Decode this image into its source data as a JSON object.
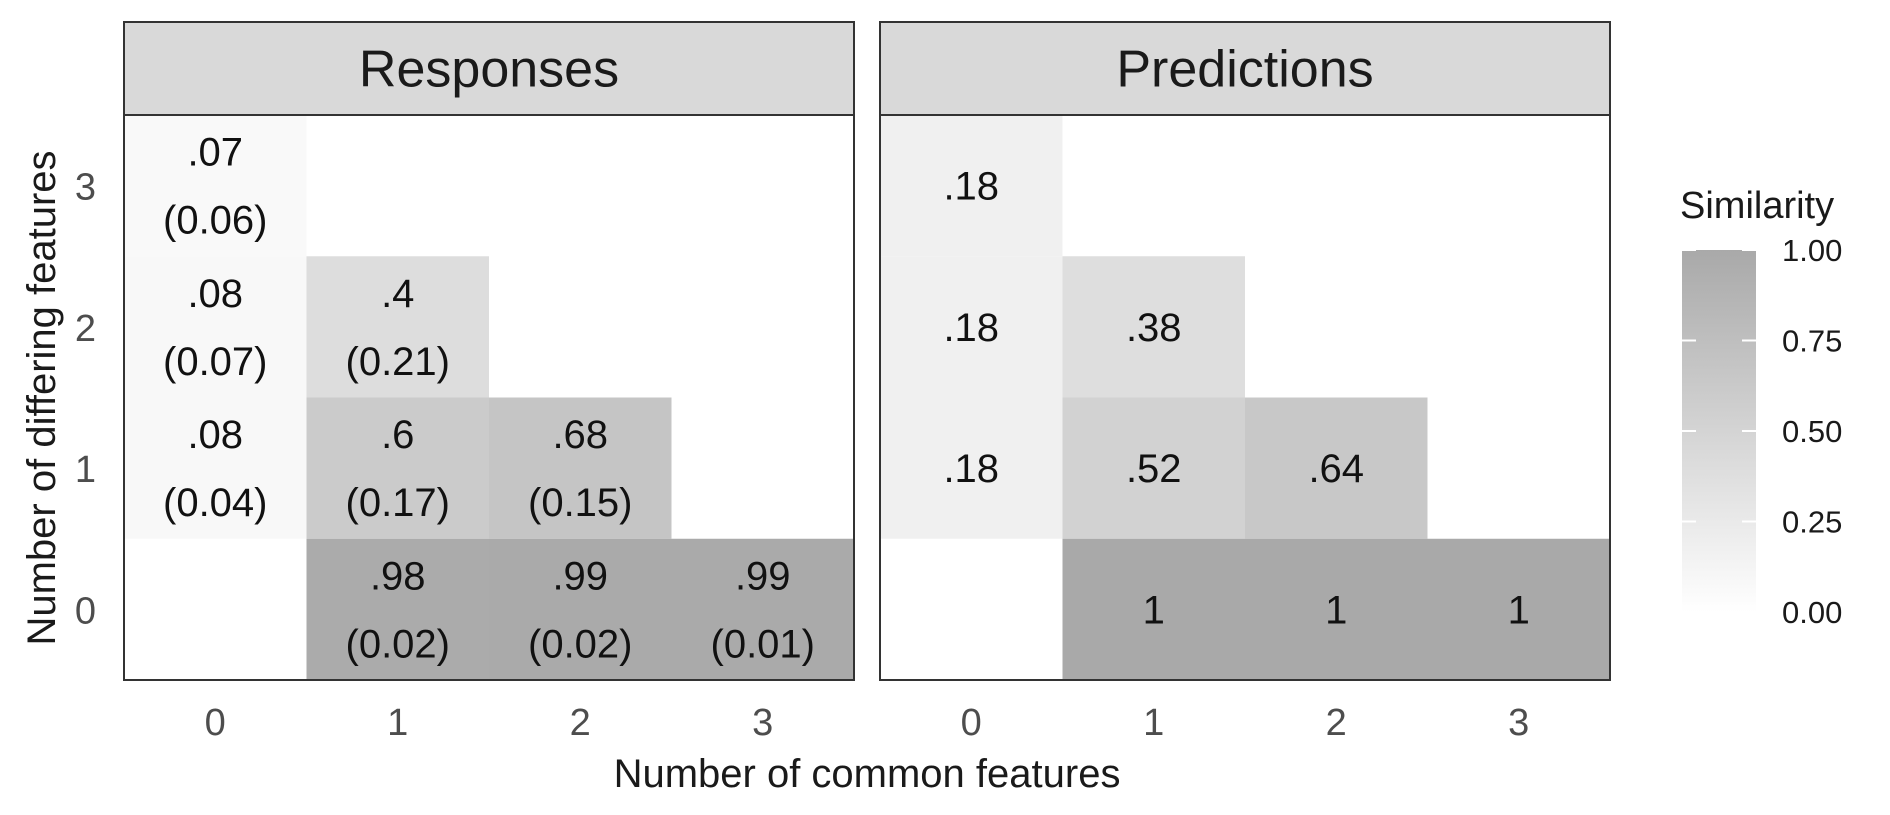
{
  "chart_data": {
    "type": "heatmap",
    "xlabel": "Number of common features",
    "ylabel": "Number of differing features",
    "x_categories": [
      "0",
      "1",
      "2",
      "3"
    ],
    "y_categories": [
      "0",
      "1",
      "2",
      "3"
    ],
    "facets": [
      {
        "title": "Responses",
        "cells": [
          {
            "x": 0,
            "y": 3,
            "value": 0.07,
            "label": ".07",
            "sublabel": "(0.06)"
          },
          {
            "x": 0,
            "y": 2,
            "value": 0.08,
            "label": ".08",
            "sublabel": "(0.07)"
          },
          {
            "x": 0,
            "y": 1,
            "value": 0.08,
            "label": ".08",
            "sublabel": "(0.04)"
          },
          {
            "x": 1,
            "y": 2,
            "value": 0.4,
            "label": ".4",
            "sublabel": "(0.21)"
          },
          {
            "x": 1,
            "y": 1,
            "value": 0.6,
            "label": ".6",
            "sublabel": "(0.17)"
          },
          {
            "x": 2,
            "y": 1,
            "value": 0.68,
            "label": ".68",
            "sublabel": "(0.15)"
          },
          {
            "x": 1,
            "y": 0,
            "value": 0.98,
            "label": ".98",
            "sublabel": "(0.02)"
          },
          {
            "x": 2,
            "y": 0,
            "value": 0.99,
            "label": ".99",
            "sublabel": "(0.02)"
          },
          {
            "x": 3,
            "y": 0,
            "value": 0.99,
            "label": ".99",
            "sublabel": "(0.01)"
          }
        ]
      },
      {
        "title": "Predictions",
        "cells": [
          {
            "x": 0,
            "y": 3,
            "value": 0.18,
            "label": ".18"
          },
          {
            "x": 0,
            "y": 2,
            "value": 0.18,
            "label": ".18"
          },
          {
            "x": 0,
            "y": 1,
            "value": 0.18,
            "label": ".18"
          },
          {
            "x": 1,
            "y": 2,
            "value": 0.38,
            "label": ".38"
          },
          {
            "x": 1,
            "y": 1,
            "value": 0.52,
            "label": ".52"
          },
          {
            "x": 2,
            "y": 1,
            "value": 0.64,
            "label": ".64"
          },
          {
            "x": 1,
            "y": 0,
            "value": 1,
            "label": "1"
          },
          {
            "x": 2,
            "y": 0,
            "value": 1,
            "label": "1"
          },
          {
            "x": 3,
            "y": 0,
            "value": 1,
            "label": "1"
          }
        ]
      }
    ],
    "legend": {
      "title": "Similarity",
      "range": [
        0,
        1
      ],
      "ticks": [
        "0.00",
        "0.25",
        "0.50",
        "0.75",
        "1.00"
      ],
      "color_low": "#ffffff",
      "color_high": "#a9a9a9",
      "position": "right"
    },
    "grid": false
  }
}
